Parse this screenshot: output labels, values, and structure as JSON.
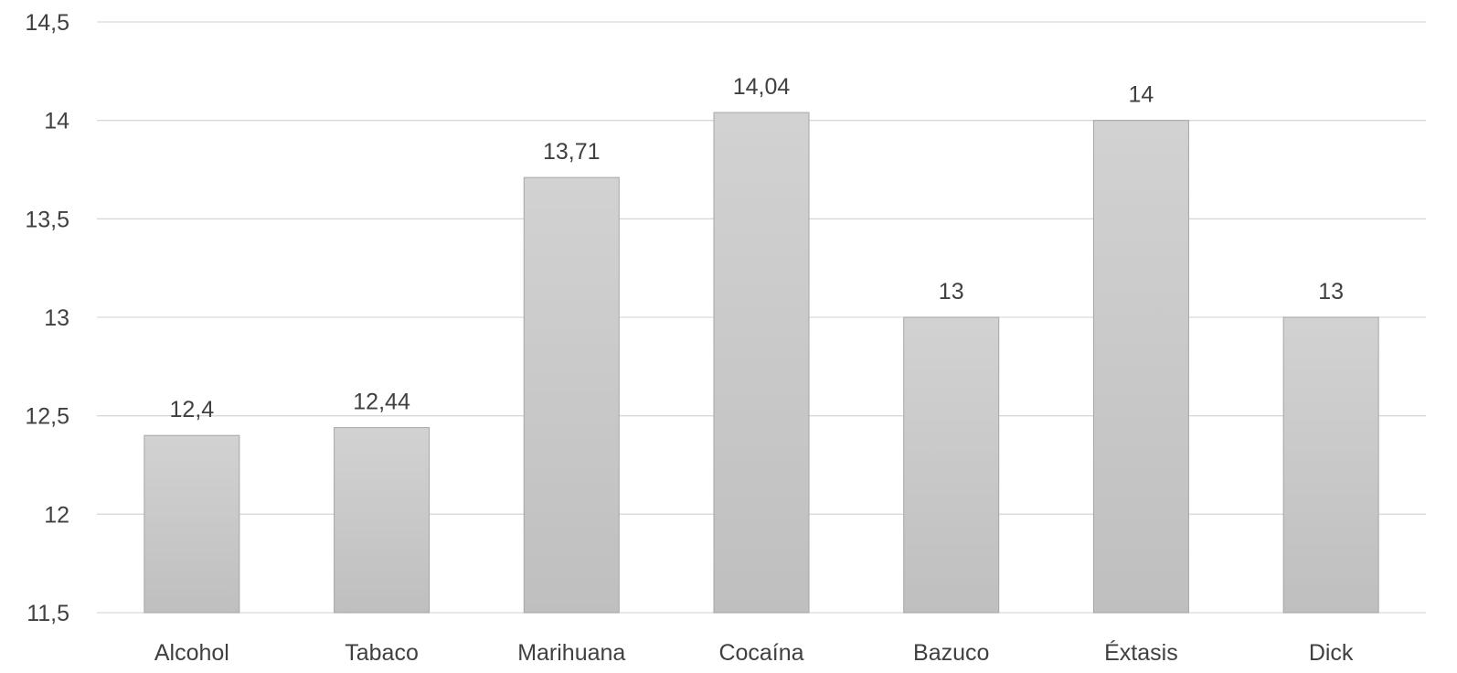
{
  "chart_data": {
    "type": "bar",
    "title": "",
    "xlabel": "",
    "ylabel": "",
    "categories": [
      "Alcohol",
      "Tabaco",
      "Marihuana",
      "Cocaína",
      "Bazuco",
      "Éxtasis",
      "Dick"
    ],
    "values": [
      12.4,
      12.44,
      13.71,
      14.04,
      13,
      14,
      13
    ],
    "data_labels": [
      "12,4",
      "12,44",
      "13,71",
      "14,04",
      "13",
      "14",
      "13"
    ],
    "ylim": [
      11.5,
      14.5
    ],
    "y_ticks": [
      11.5,
      12,
      12.5,
      13,
      13.5,
      14,
      14.5
    ],
    "y_tick_labels": [
      "11,5",
      "12",
      "12,5",
      "13",
      "13,5",
      "14",
      "14,5"
    ],
    "grid": true,
    "legend": "none",
    "colors": {
      "bar_top": "#d2d2d2",
      "bar_bottom": "#bfbfbf",
      "bar_border": "#a6a6a6",
      "gridline": "#d9d9d9",
      "text": "#404040"
    }
  }
}
